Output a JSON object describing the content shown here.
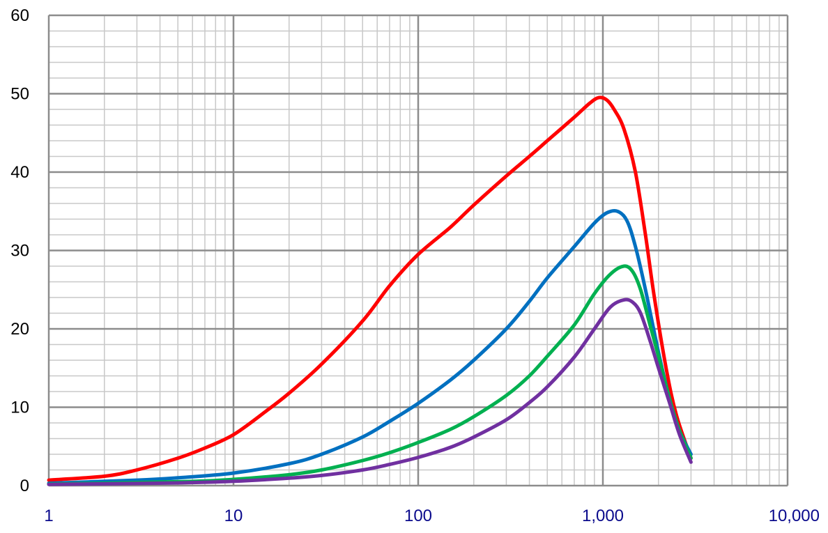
{
  "chart_data": {
    "type": "line",
    "title": "",
    "xlabel": "",
    "ylabel": "",
    "x_scale": "log",
    "xlim": [
      1,
      10000
    ],
    "ylim": [
      0,
      60
    ],
    "grid": true,
    "legend": "none",
    "x_ticks": [
      1,
      10,
      100,
      1000,
      10000
    ],
    "x_tick_labels": [
      "1",
      "10",
      "100",
      "1,000",
      "10,000"
    ],
    "y_ticks": [
      0,
      10,
      20,
      30,
      40,
      50,
      60
    ],
    "y_tick_labels": [
      "0",
      "10",
      "20",
      "30",
      "40",
      "50",
      "60"
    ],
    "series": [
      {
        "color": "#ff0000",
        "points": [
          [
            1,
            0.7
          ],
          [
            2,
            1.2
          ],
          [
            3,
            2
          ],
          [
            5,
            3.5
          ],
          [
            7,
            4.8
          ],
          [
            10,
            6.5
          ],
          [
            15,
            9.5
          ],
          [
            20,
            11.8
          ],
          [
            30,
            15.5
          ],
          [
            50,
            21
          ],
          [
            70,
            25.5
          ],
          [
            100,
            29.5
          ],
          [
            150,
            33
          ],
          [
            200,
            35.8
          ],
          [
            300,
            39.5
          ],
          [
            400,
            42
          ],
          [
            500,
            44
          ],
          [
            700,
            47
          ],
          [
            850,
            48.8
          ],
          [
            950,
            49.5
          ],
          [
            1050,
            49.2
          ],
          [
            1150,
            48
          ],
          [
            1300,
            45.5
          ],
          [
            1500,
            40
          ],
          [
            1700,
            32
          ],
          [
            1900,
            24
          ],
          [
            2200,
            15
          ],
          [
            2500,
            9
          ],
          [
            3000,
            3.5
          ]
        ]
      },
      {
        "color": "#0070c0",
        "points": [
          [
            1,
            0.3
          ],
          [
            3,
            0.7
          ],
          [
            5,
            1
          ],
          [
            10,
            1.6
          ],
          [
            20,
            2.8
          ],
          [
            30,
            4
          ],
          [
            50,
            6.2
          ],
          [
            70,
            8.2
          ],
          [
            100,
            10.5
          ],
          [
            150,
            13.5
          ],
          [
            200,
            16
          ],
          [
            300,
            20
          ],
          [
            400,
            23.5
          ],
          [
            500,
            26.5
          ],
          [
            700,
            30.5
          ],
          [
            900,
            33.5
          ],
          [
            1050,
            34.8
          ],
          [
            1200,
            35
          ],
          [
            1350,
            33.8
          ],
          [
            1500,
            30.5
          ],
          [
            1700,
            25
          ],
          [
            2000,
            17
          ],
          [
            2300,
            11
          ],
          [
            2600,
            7
          ],
          [
            3000,
            4
          ]
        ]
      },
      {
        "color": "#00b050",
        "points": [
          [
            1,
            0.2
          ],
          [
            5,
            0.5
          ],
          [
            10,
            0.8
          ],
          [
            20,
            1.4
          ],
          [
            30,
            2
          ],
          [
            50,
            3.2
          ],
          [
            70,
            4.2
          ],
          [
            100,
            5.5
          ],
          [
            150,
            7.2
          ],
          [
            200,
            8.8
          ],
          [
            300,
            11.5
          ],
          [
            400,
            14
          ],
          [
            500,
            16.5
          ],
          [
            700,
            20.5
          ],
          [
            900,
            24.5
          ],
          [
            1100,
            27
          ],
          [
            1300,
            28
          ],
          [
            1450,
            27.3
          ],
          [
            1600,
            25
          ],
          [
            1800,
            20.5
          ],
          [
            2000,
            16.5
          ],
          [
            2300,
            11
          ],
          [
            2600,
            7
          ],
          [
            3000,
            3.5
          ]
        ]
      },
      {
        "color": "#7030a0",
        "points": [
          [
            1,
            0.15
          ],
          [
            5,
            0.35
          ],
          [
            10,
            0.55
          ],
          [
            20,
            0.95
          ],
          [
            30,
            1.3
          ],
          [
            50,
            2
          ],
          [
            70,
            2.7
          ],
          [
            100,
            3.6
          ],
          [
            150,
            4.9
          ],
          [
            200,
            6.2
          ],
          [
            300,
            8.4
          ],
          [
            400,
            10.6
          ],
          [
            500,
            12.6
          ],
          [
            700,
            16.4
          ],
          [
            900,
            20
          ],
          [
            1100,
            22.8
          ],
          [
            1300,
            23.7
          ],
          [
            1450,
            23.4
          ],
          [
            1600,
            22
          ],
          [
            1800,
            18.5
          ],
          [
            2000,
            15
          ],
          [
            2300,
            10.5
          ],
          [
            2600,
            6.5
          ],
          [
            3000,
            3
          ]
        ]
      }
    ]
  }
}
